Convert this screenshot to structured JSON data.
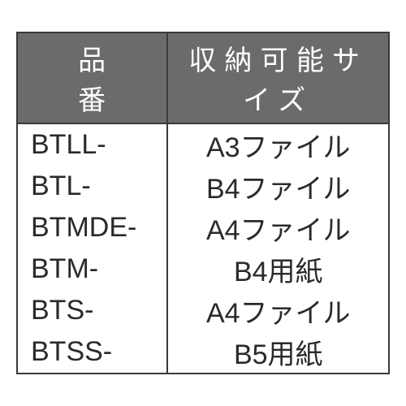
{
  "table": {
    "header_bg": "#6b6b6b",
    "header_text_color": "#ffffff",
    "border_color": "#3a3a3a",
    "cell_text_color": "#2a2a2a",
    "font_size": 34,
    "columns": [
      {
        "label": "品番",
        "align": "left"
      },
      {
        "label": "収納可能サイズ",
        "align": "center"
      }
    ],
    "rows": [
      {
        "code": "BTLL-",
        "size": "A3ファイル"
      },
      {
        "code": "BTL-",
        "size": "B4ファイル"
      },
      {
        "code": "BTMDE-",
        "size": "A4ファイル"
      },
      {
        "code": "BTM-",
        "size": "B4用紙"
      },
      {
        "code": "BTS-",
        "size": "A4ファイル"
      },
      {
        "code": "BTSS-",
        "size": "B5用紙"
      }
    ]
  }
}
